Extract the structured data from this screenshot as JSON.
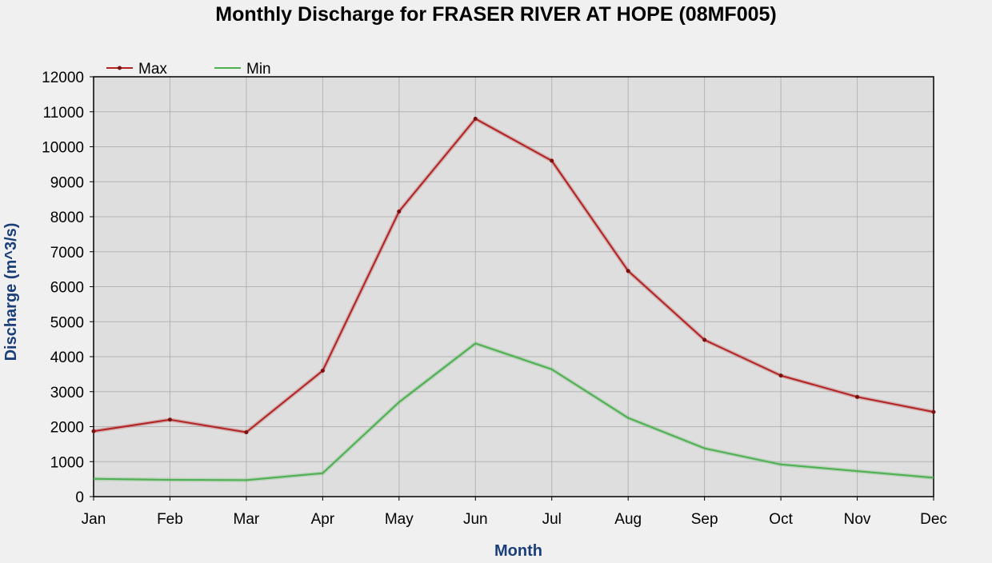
{
  "chart_data": {
    "type": "line",
    "title": "Monthly Discharge for FRASER RIVER AT HOPE (08MF005)",
    "xlabel": "Month",
    "ylabel": "Discharge (m^3/s)",
    "categories": [
      "Jan",
      "Feb",
      "Mar",
      "Apr",
      "May",
      "Jun",
      "Jul",
      "Aug",
      "Sep",
      "Oct",
      "Nov",
      "Dec"
    ],
    "ylim": [
      0,
      12000
    ],
    "yticks": [
      "0",
      "1000",
      "2000",
      "3000",
      "4000",
      "5000",
      "6000",
      "7000",
      "8000",
      "9000",
      "10000",
      "11000",
      "12000"
    ],
    "grid": true,
    "legend_position": "top-left",
    "series": [
      {
        "name": "Max",
        "color": "#b22222",
        "markers": true,
        "values": [
          1870,
          2200,
          1840,
          3600,
          8150,
          10800,
          9600,
          6450,
          4480,
          3460,
          2850,
          2420
        ]
      },
      {
        "name": "Min",
        "color": "#4caf50",
        "markers": false,
        "values": [
          510,
          480,
          470,
          670,
          2700,
          4380,
          3640,
          2250,
          1380,
          920,
          730,
          540
        ]
      }
    ]
  }
}
